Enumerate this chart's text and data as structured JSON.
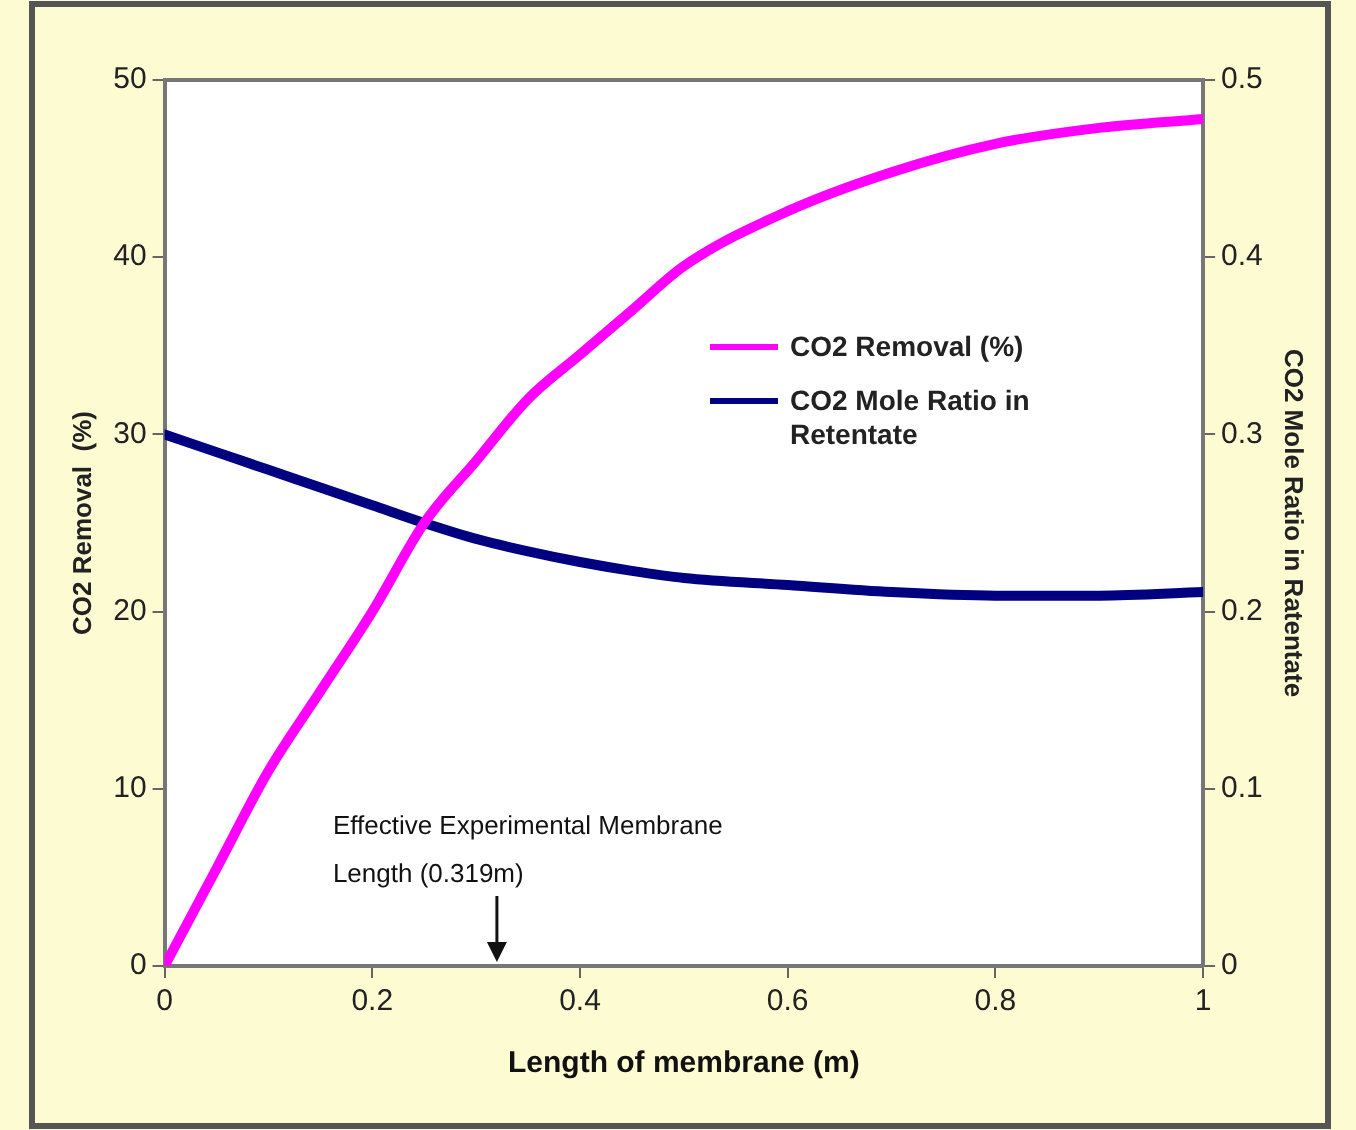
{
  "chart_data": {
    "type": "line",
    "xlabel": "Length of membrane (m)",
    "ylabel": "CO2 Removal  (%)",
    "y2label": "CO2 Mole Ratio in Ratentate",
    "x": [
      0,
      0.05,
      0.1,
      0.15,
      0.2,
      0.25,
      0.3,
      0.35,
      0.4,
      0.45,
      0.5,
      0.6,
      0.7,
      0.8,
      0.9,
      1
    ],
    "series": [
      {
        "name": "CO2 Removal (%)",
        "color": "#ff00ff",
        "values": [
          0,
          5.5,
          11,
          15.5,
          20,
          25,
          28.5,
          32,
          34.5,
          37,
          39.5,
          42.6,
          44.8,
          46.4,
          47.3,
          47.8
        ]
      },
      {
        "name": "CO2 Mole Ratio in Retentate",
        "color": "#000080",
        "axis": "y2",
        "values": [
          0.3,
          0.29,
          0.28,
          0.27,
          0.26,
          0.25,
          0.241,
          0.234,
          0.228,
          0.223,
          0.219,
          0.215,
          0.211,
          0.209,
          0.209,
          0.211
        ]
      }
    ],
    "xlim": [
      0,
      1
    ],
    "xticks": [
      0,
      0.2,
      0.4,
      0.6,
      0.8,
      1
    ],
    "ylim": [
      0,
      50
    ],
    "yticks": [
      0,
      10,
      20,
      30,
      40,
      50
    ],
    "y2lim": [
      0,
      0.5
    ],
    "y2ticks": [
      0,
      0.1,
      0.2,
      0.3,
      0.4,
      0.5
    ],
    "annotations": [
      "Effective Experimental Membrane Length (0.319m)"
    ],
    "grid": false,
    "legend": "right"
  }
}
